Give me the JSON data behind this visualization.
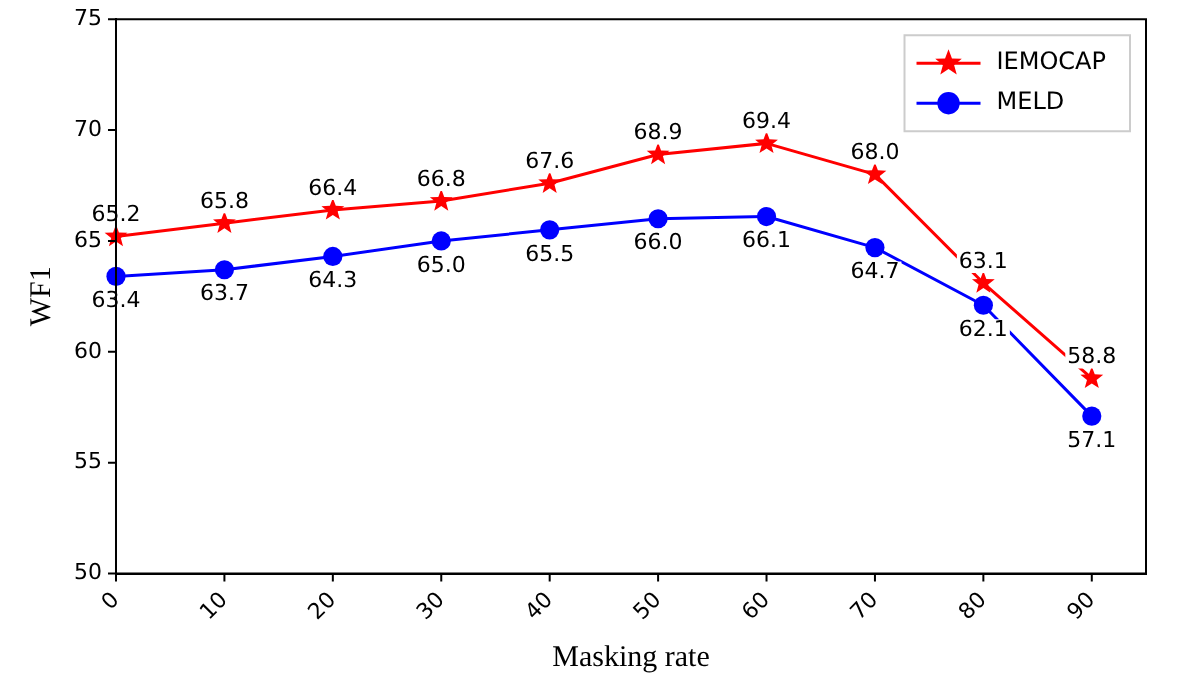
{
  "chart_data": {
    "type": "line",
    "xlabel": "Masking rate",
    "ylabel": "WF1",
    "x": [
      0,
      10,
      20,
      30,
      40,
      50,
      60,
      70,
      80,
      90
    ],
    "series": [
      {
        "name": "IEMOCAP",
        "color": "#ff0000",
        "marker": "star",
        "values": [
          65.2,
          65.8,
          66.4,
          66.8,
          67.6,
          68.9,
          69.4,
          68.0,
          63.1,
          58.8
        ],
        "value_labels": [
          "65.2",
          "65.8",
          "66.4",
          "66.8",
          "67.6",
          "68.9",
          "69.4",
          "68.0",
          "63.1",
          "58.8"
        ]
      },
      {
        "name": "MELD",
        "color": "#0000ff",
        "marker": "circle",
        "values": [
          63.4,
          63.7,
          64.3,
          65.0,
          65.5,
          66.0,
          66.1,
          64.7,
          62.1,
          57.1
        ],
        "value_labels": [
          "63.4",
          "63.7",
          "64.3",
          "65.0",
          "65.5",
          "66.0",
          "66.1",
          "64.7",
          "62.1",
          "57.1"
        ]
      }
    ],
    "xlim": [
      0,
      95
    ],
    "xticks": [
      0,
      10,
      20,
      30,
      40,
      50,
      60,
      70,
      80,
      90
    ],
    "ylim": [
      50,
      75
    ],
    "yticks": [
      50,
      55,
      60,
      65,
      70,
      75
    ],
    "grid": false,
    "legend": "top right",
    "line_style": "solid"
  }
}
